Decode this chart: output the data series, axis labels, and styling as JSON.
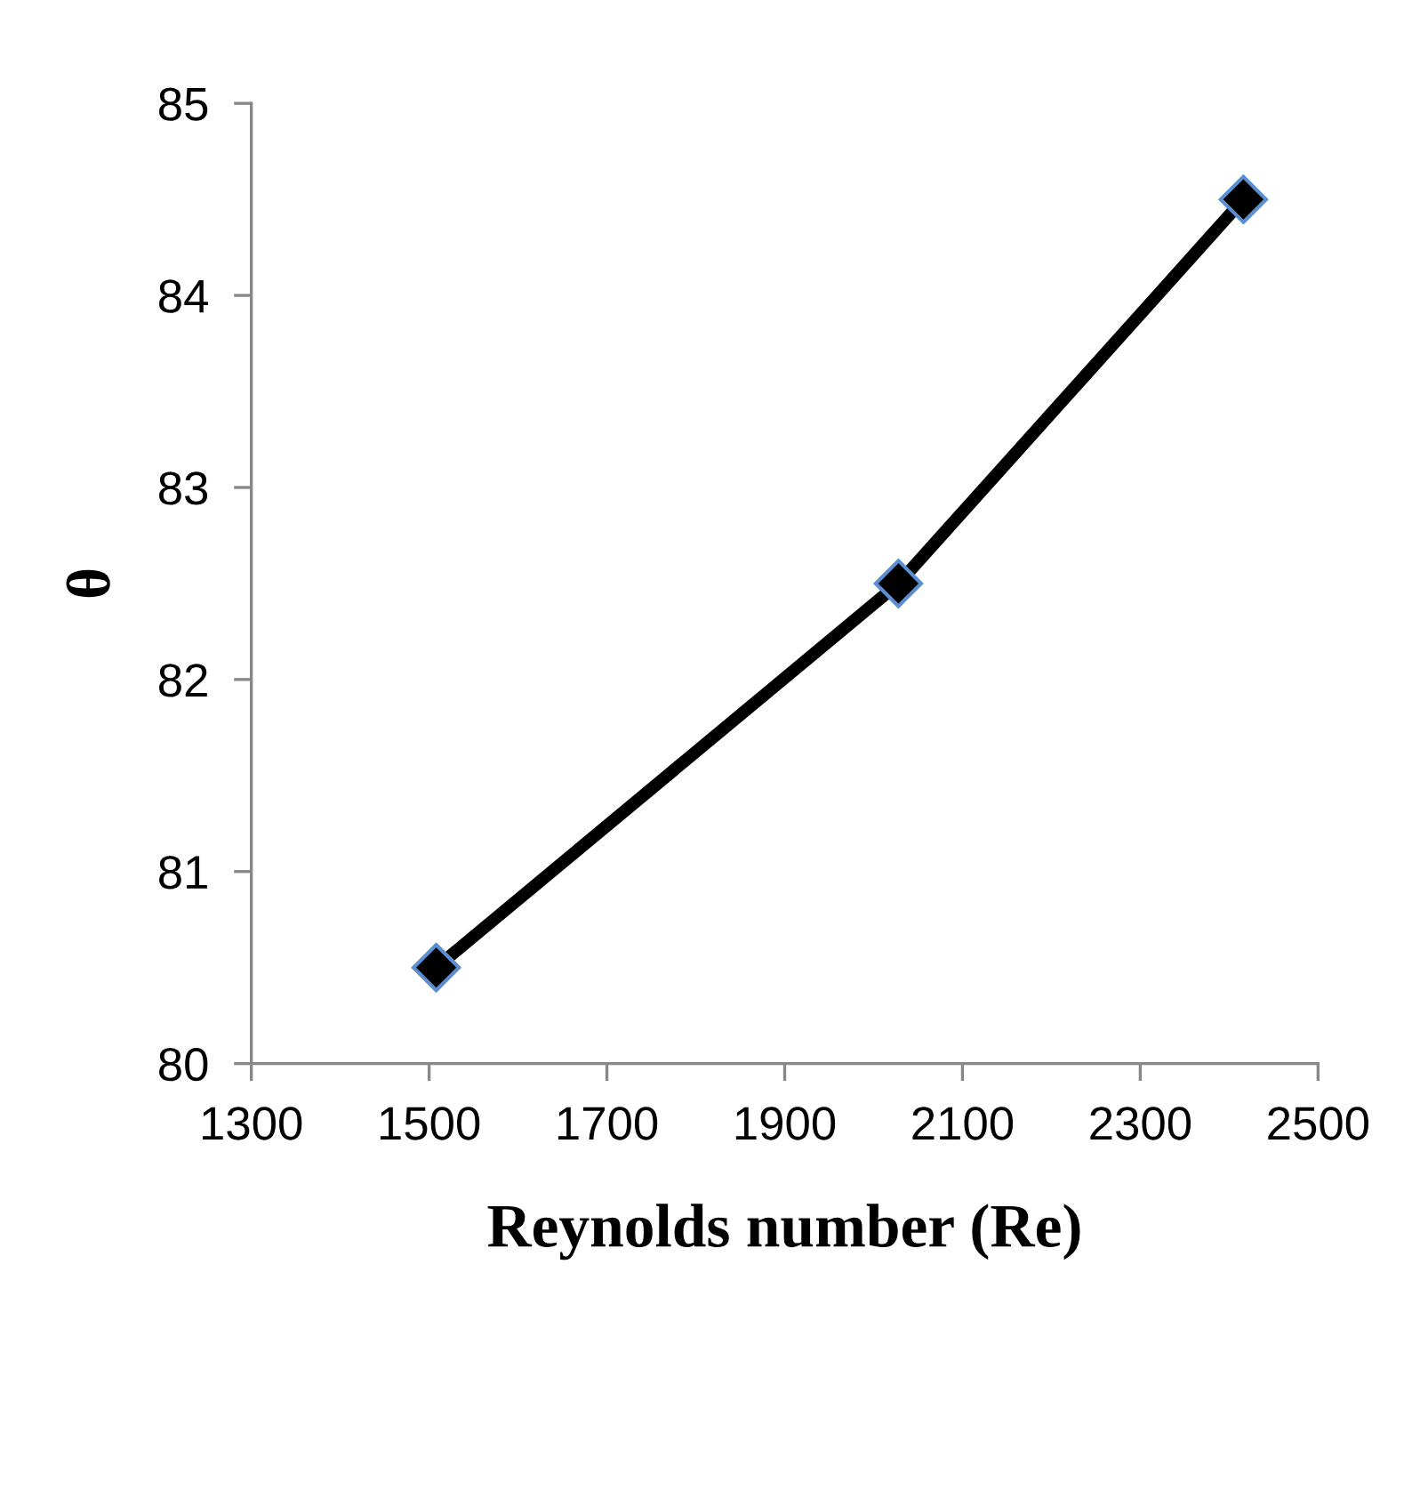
{
  "chart_data": {
    "type": "line",
    "xlabel": "Reynolds number (Re)",
    "ylabel": "θ",
    "x": [
      1508,
      2028,
      2416
    ],
    "series": [
      {
        "color": "#000000",
        "values": [
          80.5,
          82.5,
          84.5
        ]
      }
    ],
    "xlim": [
      1300,
      2500
    ],
    "xticks": [
      1300,
      1500,
      1700,
      1900,
      2100,
      2300,
      2500
    ],
    "ylim": [
      80,
      85
    ],
    "yticks": [
      80,
      81,
      82,
      83,
      84,
      85
    ],
    "grid": false,
    "legend": false,
    "marker": "diamond",
    "line_style": "solid"
  }
}
